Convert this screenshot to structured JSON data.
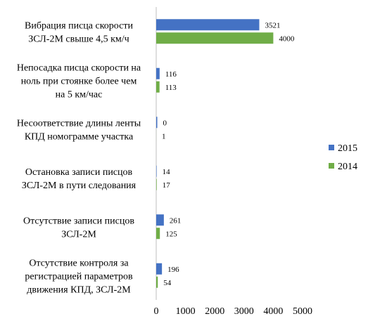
{
  "chart_data": {
    "type": "bar",
    "orientation": "horizontal",
    "categories": [
      [
        "Вибрация писца скорости",
        "ЗСЛ-2М свыше 4,5 км/ч"
      ],
      [
        "Непосадка писца скорости на",
        "ноль при стоянке более чем",
        "на 5 км/час"
      ],
      [
        "Несоответствие длины ленты",
        "КПД номограмме участка"
      ],
      [
        "Остановка записи писцов",
        "ЗСЛ-2М в пути следования"
      ],
      [
        "Отсутствие записи писцов",
        "ЗСЛ-2М"
      ],
      [
        "Отсутствие контроля за",
        "регистрацией параметров",
        "движения КПД, ЗСЛ-2М"
      ]
    ],
    "series": [
      {
        "name": "2015",
        "color": "#4472C4",
        "values": [
          3521,
          116,
          0,
          14,
          261,
          196
        ]
      },
      {
        "name": "2014",
        "color": "#70AD47",
        "values": [
          4000,
          113,
          1,
          17,
          125,
          54
        ]
      }
    ],
    "xlim": [
      0,
      5000
    ],
    "xticks": [
      "0",
      "1000",
      "2000",
      "3000",
      "4000",
      "5000"
    ],
    "grid": false,
    "legend_position": "right"
  }
}
